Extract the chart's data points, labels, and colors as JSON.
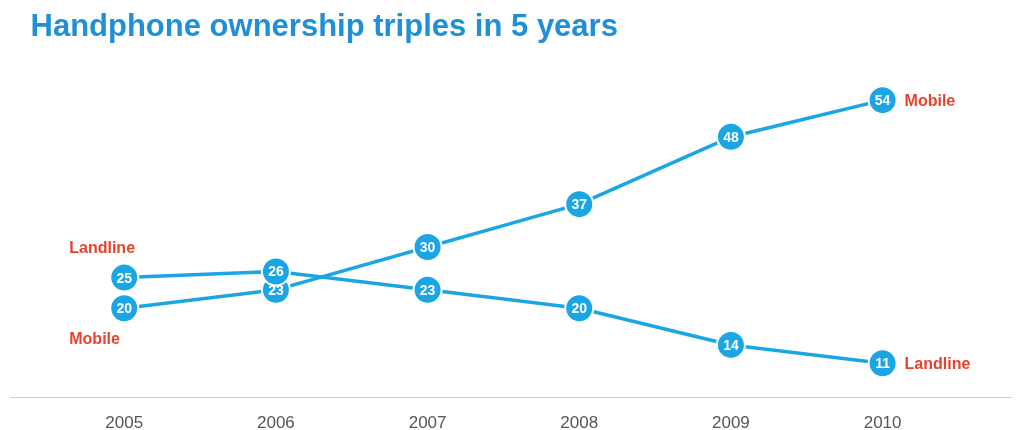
{
  "chart_data": {
    "type": "line",
    "title": "Handphone ownership triples in 5 years",
    "categories": [
      "2005",
      "2006",
      "2007",
      "2008",
      "2009",
      "2010"
    ],
    "series": [
      {
        "name": "Mobile",
        "color": "#1aa6e4",
        "values": [
          20,
          23,
          30,
          37,
          48,
          54
        ]
      },
      {
        "name": "Landline",
        "color": "#1aa6e4",
        "values": [
          25,
          26,
          23,
          20,
          14,
          11
        ]
      }
    ],
    "data_labels": true,
    "marker": "circle",
    "line_style": "solid",
    "grid": false
  }
}
